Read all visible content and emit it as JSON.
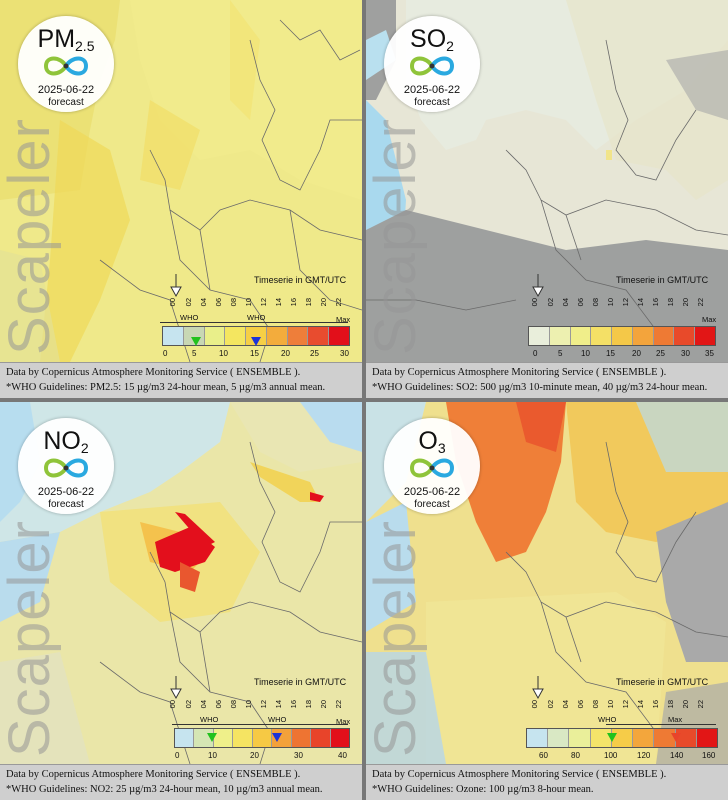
{
  "panels": [
    {
      "pollutant": "PM",
      "pollutant_sub": "2.5",
      "date": "2025-06-22",
      "forecast": "forecast",
      "watermark": "Scapeler",
      "timeserie": "Timeserie in GMT/UTC",
      "hours": [
        "00",
        "02",
        "04",
        "06",
        "08",
        "10",
        "12",
        "14",
        "16",
        "18",
        "20",
        "22"
      ],
      "scale": [
        "0",
        "5",
        "10",
        "15",
        "20",
        "25",
        "30"
      ],
      "who_labels": [
        "WHO",
        "WHO"
      ],
      "max_label": "Max",
      "footer_line1": "Data by Copernicus Atmosphere Monitoring Service ( ENSEMBLE ).",
      "footer_line2": "*WHO Guidelines: PM2.5: 15 µg/m3 24-hour mean, 5 µg/m3 annual mean.",
      "colors": [
        "#c6e4ef",
        "#c8d7b4",
        "#e9ef8a",
        "#f4e660",
        "#f6cf45",
        "#f3ac3c",
        "#ee7e3a",
        "#e84c2f",
        "#e20f1a"
      ],
      "marker_colors": [
        "#22c21d",
        "#1c33d8"
      ]
    },
    {
      "pollutant": "SO",
      "pollutant_sub": "2",
      "date": "2025-06-22",
      "forecast": "forecast",
      "watermark": "Scapeler",
      "timeserie": "Timeserie in GMT/UTC",
      "hours": [
        "00",
        "02",
        "04",
        "06",
        "08",
        "10",
        "12",
        "14",
        "16",
        "18",
        "20",
        "22"
      ],
      "scale": [
        "0",
        "5",
        "10",
        "15",
        "20",
        "25",
        "30",
        "35"
      ],
      "max_label": "Max",
      "footer_line1": "Data by Copernicus Atmosphere Monitoring Service ( ENSEMBLE ).",
      "footer_line2": "*WHO Guidelines: SO2: 500 µg/m3 10-minute mean, 40 µg/m3 24-hour mean.",
      "colors": [
        "#e9eedb",
        "#edf0b0",
        "#f0ee8a",
        "#f4e066",
        "#f4c848",
        "#f3a43c",
        "#ee7a34",
        "#e84a2a",
        "#e21616"
      ]
    },
    {
      "pollutant": "NO",
      "pollutant_sub": "2",
      "date": "2025-06-22",
      "forecast": "forecast",
      "watermark": "Scapeler",
      "timeserie": "Timeserie in GMT/UTC",
      "hours": [
        "00",
        "02",
        "04",
        "06",
        "08",
        "10",
        "12",
        "14",
        "16",
        "18",
        "20",
        "22"
      ],
      "scale": [
        "0",
        "10",
        "20",
        "30",
        "40"
      ],
      "who_labels": [
        "WHO",
        "WHO"
      ],
      "max_label": "Max",
      "footer_line1": "Data by Copernicus Atmosphere Monitoring Service ( ENSEMBLE ).",
      "footer_line2": "*WHO Guidelines: NO2: 25 µg/m3 24-hour mean, 10 µg/m3 annual mean.",
      "colors": [
        "#c6e4ef",
        "#d5e6b4",
        "#eff08a",
        "#f5e462",
        "#f6c944",
        "#f3a13a",
        "#ee7432",
        "#e8442a",
        "#e20f1a"
      ],
      "marker_colors": [
        "#22c21d",
        "#1c33d8"
      ]
    },
    {
      "pollutant": "O",
      "pollutant_sub": "3",
      "date": "2025-06-22",
      "forecast": "forecast",
      "watermark": "Scapeler",
      "timeserie": "Timeserie in GMT/UTC",
      "hours": [
        "00",
        "02",
        "04",
        "06",
        "08",
        "10",
        "12",
        "14",
        "16",
        "18",
        "20",
        "22"
      ],
      "scale": [
        "60",
        "80",
        "100",
        "120",
        "140",
        "160"
      ],
      "who_labels": [
        "WHO"
      ],
      "max_label": "Max",
      "footer_line1": "Data by Copernicus Atmosphere Monitoring Service ( ENSEMBLE ).",
      "footer_line2": "*WHO Guidelines: Ozone: 100 µg/m3 8-hour mean.",
      "colors": [
        "#c6e4ef",
        "#d9e8c4",
        "#eaef9a",
        "#f4e46a",
        "#f6cc48",
        "#f3a63c",
        "#ee7a34",
        "#e84a2a",
        "#e21616"
      ],
      "marker_colors": [
        "#22c21d",
        "#e8442a"
      ]
    }
  ]
}
